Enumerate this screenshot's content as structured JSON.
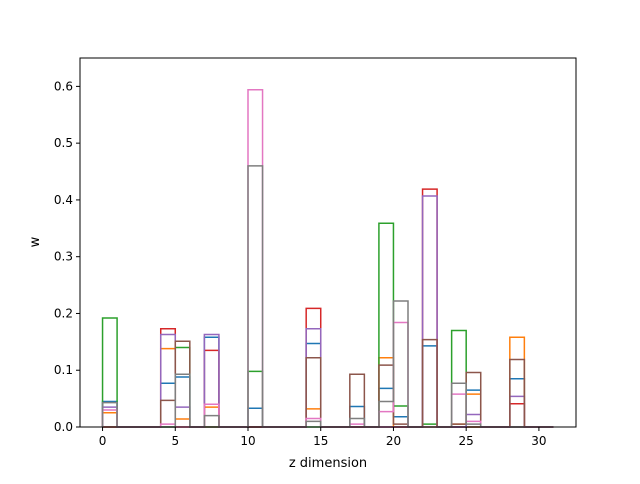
{
  "chart_data": {
    "type": "bar",
    "style": "step-histogram",
    "title": "",
    "xlabel": "z dimension",
    "ylabel": "w",
    "xlim": [
      -1.55,
      32.55
    ],
    "ylim": [
      0,
      0.65
    ],
    "x_ticks": [
      0,
      5,
      10,
      15,
      20,
      25,
      30
    ],
    "y_ticks": [
      0.0,
      0.1,
      0.2,
      0.3,
      0.4,
      0.5,
      0.6
    ],
    "x_tick_labels": [
      "0",
      "5",
      "10",
      "15",
      "20",
      "25",
      "30"
    ],
    "y_tick_labels": [
      "0.0",
      "0.1",
      "0.2",
      "0.3",
      "0.4",
      "0.5",
      "0.6"
    ],
    "grid": false,
    "bin_width": 1,
    "color_cycle": [
      "#1f77b4",
      "#ff7f0e",
      "#2ca02c",
      "#d62728",
      "#9467bd",
      "#8c564b",
      "#e377c2",
      "#7f7f7f"
    ],
    "bins": [
      {
        "start": 0,
        "values": [
          0.045,
          0.025,
          0.192,
          0.0,
          0.035,
          0.0,
          0.03,
          0.043
        ]
      },
      {
        "start": 4,
        "values": [
          0.077,
          0.138,
          0.0,
          0.173,
          0.163,
          0.047,
          0.005,
          0.0
        ]
      },
      {
        "start": 5,
        "values": [
          0.088,
          0.014,
          0.14,
          0.0,
          0.035,
          0.151,
          0.0,
          0.093
        ]
      },
      {
        "start": 7,
        "values": [
          0.158,
          0.035,
          0.0,
          0.135,
          0.163,
          0.0,
          0.04,
          0.02
        ]
      },
      {
        "start": 10,
        "values": [
          0.033,
          0.0,
          0.098,
          0.0,
          0.0,
          0.0,
          0.594,
          0.46
        ]
      },
      {
        "start": 14,
        "values": [
          0.147,
          0.032,
          0.0,
          0.209,
          0.173,
          0.122,
          0.015,
          0.01
        ]
      },
      {
        "start": 17,
        "values": [
          0.036,
          0.0,
          0.0,
          0.0,
          0.0,
          0.093,
          0.005,
          0.015
        ]
      },
      {
        "start": 19,
        "values": [
          0.068,
          0.122,
          0.359,
          0.0,
          0.0,
          0.109,
          0.027,
          0.045
        ]
      },
      {
        "start": 20,
        "values": [
          0.018,
          0.0,
          0.037,
          0.0,
          0.0,
          0.005,
          0.184,
          0.222
        ]
      },
      {
        "start": 22,
        "values": [
          0.143,
          0.0,
          0.005,
          0.419,
          0.407,
          0.154,
          0.0,
          0.0
        ]
      },
      {
        "start": 24,
        "values": [
          0.0,
          0.005,
          0.17,
          0.0,
          0.0,
          0.005,
          0.058,
          0.077
        ]
      },
      {
        "start": 25,
        "values": [
          0.065,
          0.058,
          0.0,
          0.0,
          0.022,
          0.096,
          0.01,
          0.005
        ]
      },
      {
        "start": 28,
        "values": [
          0.085,
          0.158,
          0.0,
          0.041,
          0.054,
          0.119,
          0.0,
          0.0
        ]
      }
    ]
  }
}
